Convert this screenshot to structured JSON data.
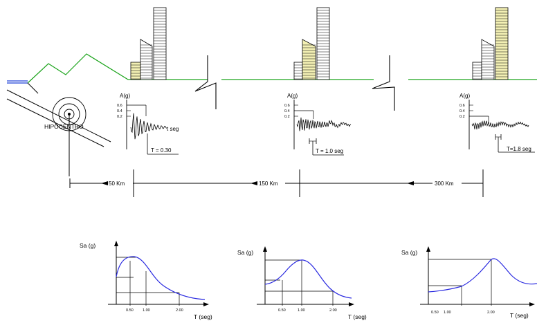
{
  "colors": {
    "ground": "#1aa31a",
    "rock": "#1a3fd6",
    "spectrum": "#2a2ae0",
    "building_hl": "#f3f0b4",
    "ink": "#000000"
  },
  "labels": {
    "hypocenter": "HIPOCENTRO",
    "accel_axis": "A(g)",
    "ticks_accel": [
      "0.6",
      "0.4",
      "0.2"
    ],
    "time_axis": "t seg",
    "sa_axis": "Sa (g)",
    "period_axis": "T (seg)",
    "period_ticks": [
      "0.50",
      "1.00",
      "2.00"
    ]
  },
  "records": [
    {
      "period_label": "T = 0.30",
      "distance_label": "50 Km"
    },
    {
      "period_label": "T = 1.0 seg",
      "distance_label": "150 Km"
    },
    {
      "period_label": "T=1.8 seg",
      "distance_label": "300 Km"
    }
  ],
  "icons": [
    "building-icon",
    "break-line-icon",
    "hypocenter-target-icon"
  ]
}
